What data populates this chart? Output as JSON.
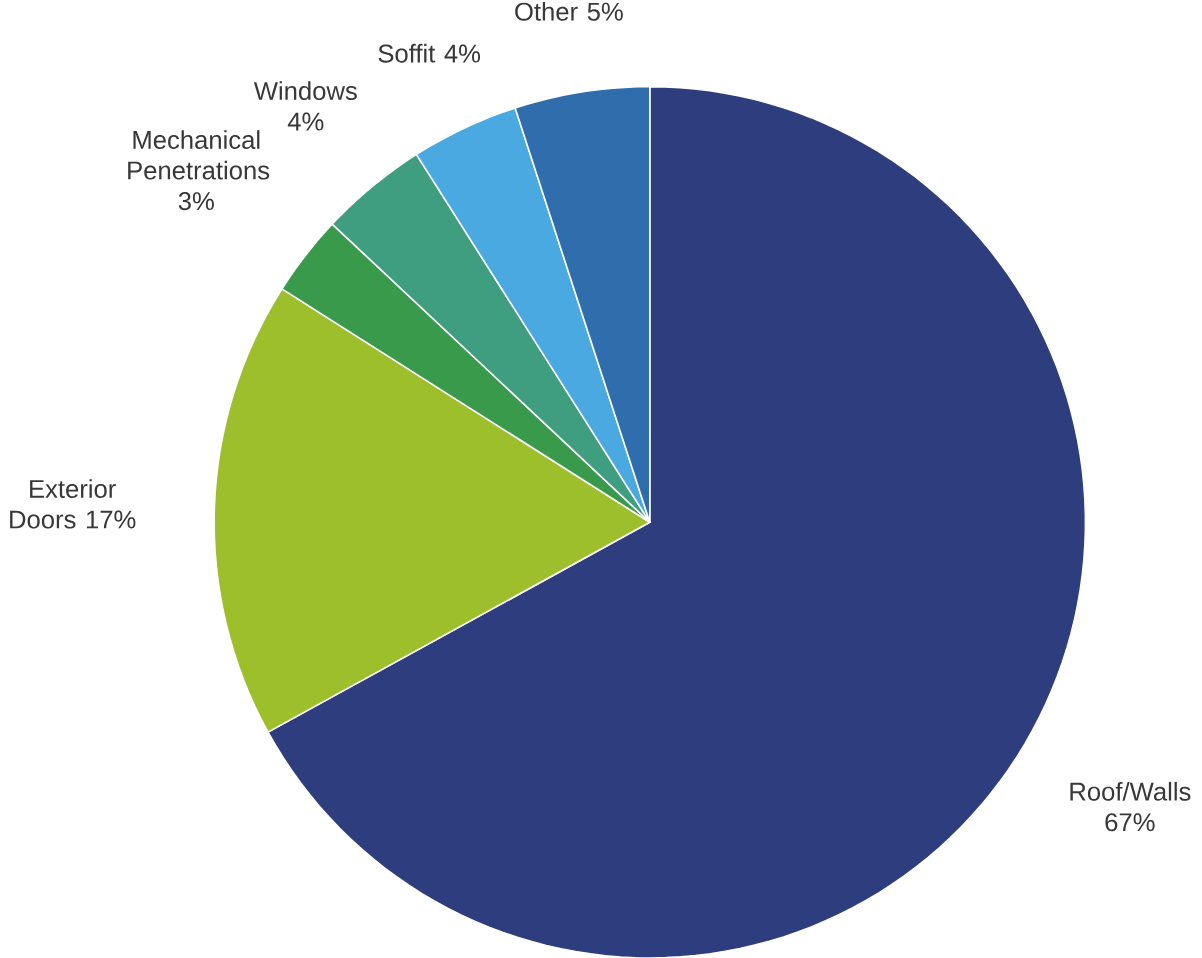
{
  "chart_data": {
    "type": "pie",
    "categories": [
      "Roof/Walls",
      "Exterior Doors",
      "Mechanical Penetrations",
      "Windows",
      "Soffit",
      "Other"
    ],
    "values": [
      67,
      17,
      3,
      4,
      4,
      5
    ],
    "value_labels": [
      "67%",
      "17%",
      "3%",
      "4%",
      "4%",
      "5%"
    ],
    "colors": [
      "#2d3d7e",
      "#9dbf2c",
      "#3a9a4c",
      "#3f9e80",
      "#4aa9e0",
      "#2f6dac"
    ]
  }
}
